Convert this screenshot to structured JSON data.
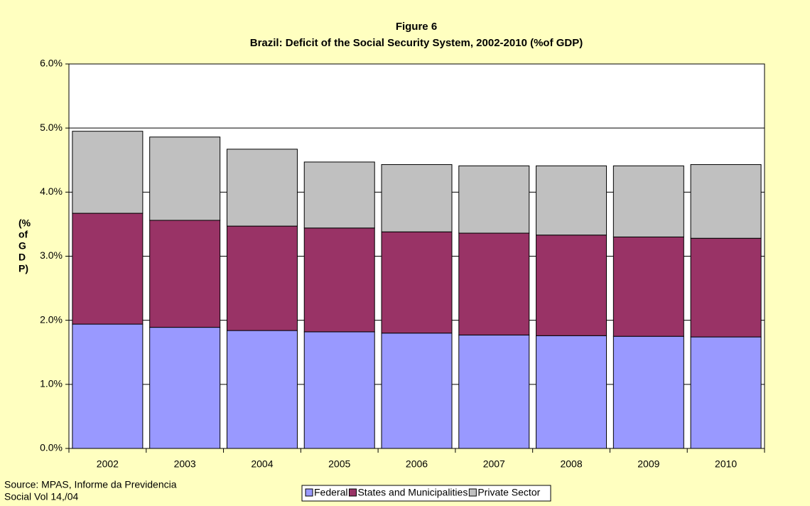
{
  "chart_data": {
    "type": "stacked_bar",
    "title": "Figure 6",
    "subtitle": "Brazil: Deficit of the Social Security System, 2002-2010 (%of GDP)",
    "y_label_lines": [
      "(%",
      "of",
      "G",
      "D",
      "P)"
    ],
    "source_lines": [
      "Source: MPAS,  Informe da Previdencia",
      "Social Vol 14,/04"
    ],
    "categories": [
      "2002",
      "2003",
      "2004",
      "2005",
      "2006",
      "2007",
      "2008",
      "2009",
      "2010"
    ],
    "series": [
      {
        "name": "Federal",
        "color": "#9999ff",
        "values": [
          1.94,
          1.89,
          1.84,
          1.82,
          1.8,
          1.77,
          1.76,
          1.75,
          1.74
        ]
      },
      {
        "name": "States and Municipalities",
        "color": "#993366",
        "values": [
          1.73,
          1.67,
          1.63,
          1.62,
          1.58,
          1.59,
          1.57,
          1.55,
          1.54
        ]
      },
      {
        "name": "Private Sector",
        "color": "#c0c0c0",
        "values": [
          1.28,
          1.3,
          1.2,
          1.03,
          1.05,
          1.05,
          1.08,
          1.11,
          1.15
        ]
      }
    ],
    "ylim": [
      0,
      6
    ],
    "yticks": [
      {
        "value": 0,
        "label": "0.0%"
      },
      {
        "value": 1,
        "label": "1.0%"
      },
      {
        "value": 2,
        "label": "2.0%"
      },
      {
        "value": 3,
        "label": "3.0%"
      },
      {
        "value": 4,
        "label": "4.0%"
      },
      {
        "value": 5,
        "label": "5.0%"
      },
      {
        "value": 6,
        "label": "6.0%"
      }
    ],
    "grid": true,
    "legend": "bottom"
  }
}
